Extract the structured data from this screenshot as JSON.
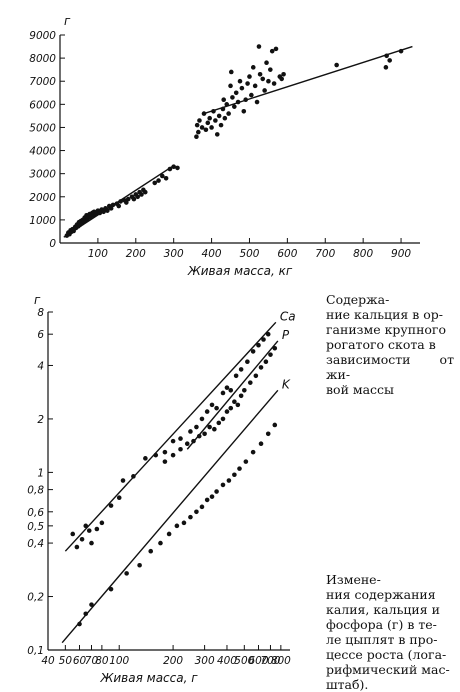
{
  "chart_data": [
    {
      "type": "scatter",
      "title": "",
      "ylabel": "г",
      "xlabel": "Живая масса, кг",
      "xlim": [
        0,
        950
      ],
      "ylim": [
        0,
        9000
      ],
      "x_ticks": [
        100,
        200,
        300,
        400,
        500,
        600,
        700,
        800,
        900
      ],
      "y_ticks": [
        0,
        1000,
        2000,
        3000,
        4000,
        5000,
        6000,
        7000,
        8000,
        9000
      ],
      "x_tick_labels": [
        "100",
        "200",
        "300",
        "400",
        "500",
        "600",
        "700",
        "800",
        "900"
      ],
      "y_tick_labels": [
        "0",
        "1000",
        "2000",
        "3000",
        "4000",
        "5000",
        "6000",
        "7000",
        "8000",
        "9000"
      ],
      "grid": false,
      "series": [
        {
          "points": [
            [
              18,
              320
            ],
            [
              22,
              450
            ],
            [
              25,
              380
            ],
            [
              28,
              550
            ],
            [
              30,
              480
            ],
            [
              33,
              600
            ],
            [
              36,
              520
            ],
            [
              40,
              700
            ],
            [
              42,
              650
            ],
            [
              45,
              800
            ],
            [
              48,
              720
            ],
            [
              50,
              900
            ],
            [
              52,
              780
            ],
            [
              55,
              950
            ],
            [
              58,
              850
            ],
            [
              60,
              1000
            ],
            [
              63,
              920
            ],
            [
              65,
              1100
            ],
            [
              68,
              980
            ],
            [
              70,
              1200
            ],
            [
              72,
              1050
            ],
            [
              75,
              1150
            ],
            [
              78,
              1250
            ],
            [
              80,
              1100
            ],
            [
              85,
              1300
            ],
            [
              88,
              1200
            ],
            [
              90,
              1350
            ],
            [
              95,
              1250
            ],
            [
              100,
              1400
            ],
            [
              105,
              1300
            ],
            [
              110,
              1450
            ],
            [
              115,
              1350
            ],
            [
              120,
              1500
            ],
            [
              125,
              1400
            ],
            [
              130,
              1600
            ],
            [
              135,
              1500
            ],
            [
              140,
              1650
            ],
            [
              150,
              1700
            ],
            [
              155,
              1600
            ],
            [
              160,
              1800
            ],
            [
              170,
              1850
            ],
            [
              175,
              1750
            ],
            [
              180,
              1900
            ],
            [
              190,
              2000
            ],
            [
              195,
              1900
            ],
            [
              200,
              2100
            ],
            [
              205,
              2000
            ],
            [
              210,
              2200
            ],
            [
              215,
              2100
            ],
            [
              220,
              2300
            ],
            [
              225,
              2200
            ],
            [
              250,
              2600
            ],
            [
              260,
              2700
            ],
            [
              270,
              2900
            ],
            [
              280,
              2800
            ],
            [
              290,
              3200
            ],
            [
              300,
              3300
            ],
            [
              310,
              3250
            ],
            [
              360,
              4600
            ],
            [
              362,
              5100
            ],
            [
              365,
              4800
            ],
            [
              368,
              5300
            ],
            [
              375,
              5000
            ],
            [
              380,
              5600
            ],
            [
              385,
              4900
            ],
            [
              390,
              5200
            ],
            [
              395,
              5400
            ],
            [
              400,
              5000
            ],
            [
              405,
              5700
            ],
            [
              410,
              5300
            ],
            [
              415,
              4700
            ],
            [
              420,
              5500
            ],
            [
              425,
              5100
            ],
            [
              430,
              5800
            ],
            [
              432,
              6200
            ],
            [
              435,
              5400
            ],
            [
              440,
              6000
            ],
            [
              445,
              5600
            ],
            [
              450,
              6800
            ],
            [
              452,
              7400
            ],
            [
              455,
              6300
            ],
            [
              460,
              5900
            ],
            [
              465,
              6500
            ],
            [
              470,
              6100
            ],
            [
              475,
              7000
            ],
            [
              480,
              6700
            ],
            [
              485,
              5700
            ],
            [
              490,
              6200
            ],
            [
              495,
              6900
            ],
            [
              500,
              7200
            ],
            [
              505,
              6400
            ],
            [
              510,
              7600
            ],
            [
              515,
              6800
            ],
            [
              520,
              6100
            ],
            [
              525,
              8500
            ],
            [
              528,
              7300
            ],
            [
              535,
              7100
            ],
            [
              540,
              6600
            ],
            [
              545,
              7800
            ],
            [
              550,
              7000
            ],
            [
              555,
              7500
            ],
            [
              560,
              8300
            ],
            [
              565,
              6900
            ],
            [
              570,
              8400
            ],
            [
              580,
              7200
            ],
            [
              585,
              7100
            ],
            [
              590,
              7300
            ],
            [
              730,
              7700
            ],
            [
              860,
              7600
            ],
            [
              862,
              8100
            ],
            [
              870,
              7900
            ],
            [
              900,
              8300
            ]
          ]
        }
      ],
      "regression": [
        {
          "points": [
            [
              10,
              250
            ],
            [
              300,
              3350
            ]
          ]
        },
        {
          "points": [
            [
              380,
              5600
            ],
            [
              930,
              8500
            ]
          ]
        }
      ]
    },
    {
      "type": "scatter",
      "title": "",
      "ylabel": "г",
      "xlabel": "Живая масса, г",
      "x_scale": "log",
      "y_scale": "log",
      "xlim": [
        40,
        900
      ],
      "ylim": [
        0.1,
        8
      ],
      "x_ticks": [
        40,
        50,
        60,
        70,
        80,
        100,
        200,
        300,
        400,
        500,
        600,
        700,
        800
      ],
      "x_tick_labels": [
        "40",
        "50",
        "60",
        "70",
        "80",
        "100",
        "200",
        "300",
        "400",
        "500",
        "600",
        "700",
        "800"
      ],
      "y_ticks": [
        0.1,
        0.2,
        0.4,
        0.5,
        0.6,
        0.8,
        1,
        2,
        4,
        6,
        8
      ],
      "y_tick_labels": [
        "0,1",
        "0,2",
        "0,4",
        "0,5",
        "0,6",
        "0,8",
        "1",
        "2",
        "4",
        "6",
        "8"
      ],
      "grid": false,
      "series": [
        {
          "name": "Ca",
          "points": [
            [
              55,
              0.45
            ],
            [
              58,
              0.38
            ],
            [
              62,
              0.42
            ],
            [
              65,
              0.5
            ],
            [
              68,
              0.47
            ],
            [
              70,
              0.4
            ],
            [
              75,
              0.48
            ],
            [
              80,
              0.52
            ],
            [
              90,
              0.65
            ],
            [
              100,
              0.72
            ],
            [
              105,
              0.9
            ],
            [
              120,
              0.95
            ],
            [
              140,
              1.2
            ],
            [
              160,
              1.25
            ],
            [
              180,
              1.3
            ],
            [
              200,
              1.5
            ],
            [
              220,
              1.55
            ],
            [
              250,
              1.7
            ],
            [
              270,
              1.8
            ],
            [
              290,
              2.0
            ],
            [
              310,
              2.2
            ],
            [
              330,
              2.4
            ],
            [
              350,
              2.3
            ],
            [
              380,
              2.8
            ],
            [
              400,
              3.0
            ],
            [
              420,
              2.9
            ],
            [
              450,
              3.5
            ],
            [
              480,
              3.8
            ],
            [
              520,
              4.2
            ],
            [
              560,
              4.8
            ],
            [
              600,
              5.2
            ],
            [
              640,
              5.6
            ],
            [
              680,
              6.0
            ]
          ],
          "fit": [
            [
              50,
              0.36
            ],
            [
              250,
              2.1
            ],
            [
              750,
              7.0
            ]
          ]
        },
        {
          "name": "P",
          "points": [
            [
              180,
              1.15
            ],
            [
              200,
              1.25
            ],
            [
              220,
              1.35
            ],
            [
              240,
              1.45
            ],
            [
              260,
              1.5
            ],
            [
              280,
              1.6
            ],
            [
              300,
              1.65
            ],
            [
              320,
              1.8
            ],
            [
              340,
              1.75
            ],
            [
              360,
              1.9
            ],
            [
              380,
              2.0
            ],
            [
              400,
              2.2
            ],
            [
              420,
              2.3
            ],
            [
              440,
              2.5
            ],
            [
              460,
              2.4
            ],
            [
              480,
              2.7
            ],
            [
              500,
              2.9
            ],
            [
              540,
              3.2
            ],
            [
              580,
              3.5
            ],
            [
              620,
              3.9
            ],
            [
              660,
              4.2
            ],
            [
              700,
              4.6
            ],
            [
              740,
              5.0
            ]
          ],
          "fit": [
            [
              240,
              1.35
            ],
            [
              770,
              5.5
            ]
          ]
        },
        {
          "name": "K",
          "points": [
            [
              60,
              0.14
            ],
            [
              65,
              0.16
            ],
            [
              70,
              0.18
            ],
            [
              90,
              0.22
            ],
            [
              110,
              0.27
            ],
            [
              130,
              0.3
            ],
            [
              150,
              0.36
            ],
            [
              170,
              0.4
            ],
            [
              190,
              0.45
            ],
            [
              210,
              0.5
            ],
            [
              230,
              0.52
            ],
            [
              250,
              0.56
            ],
            [
              270,
              0.6
            ],
            [
              290,
              0.64
            ],
            [
              310,
              0.7
            ],
            [
              330,
              0.73
            ],
            [
              350,
              0.78
            ],
            [
              380,
              0.85
            ],
            [
              410,
              0.9
            ],
            [
              440,
              0.97
            ],
            [
              470,
              1.05
            ],
            [
              510,
              1.15
            ],
            [
              560,
              1.3
            ],
            [
              620,
              1.45
            ],
            [
              680,
              1.65
            ],
            [
              740,
              1.85
            ]
          ],
          "fit": [
            [
              48,
              0.11
            ],
            [
              770,
              2.9
            ]
          ]
        }
      ],
      "annotations": [
        "Ca",
        "P",
        "K"
      ]
    }
  ],
  "captions": {
    "top": [
      "Содержа-",
      "ние кальция в ор-",
      "ганизме крупного",
      "рогатого скота в",
      "зависимости от жи-",
      "вой массы"
    ],
    "bottom": [
      "Измене-",
      "ния содержания",
      "калия, кальция и",
      "фосфора (г) в те-",
      "ле цыплят в про-",
      "цессе роста (лога-",
      "рифмический мас-",
      "штаб)."
    ]
  }
}
